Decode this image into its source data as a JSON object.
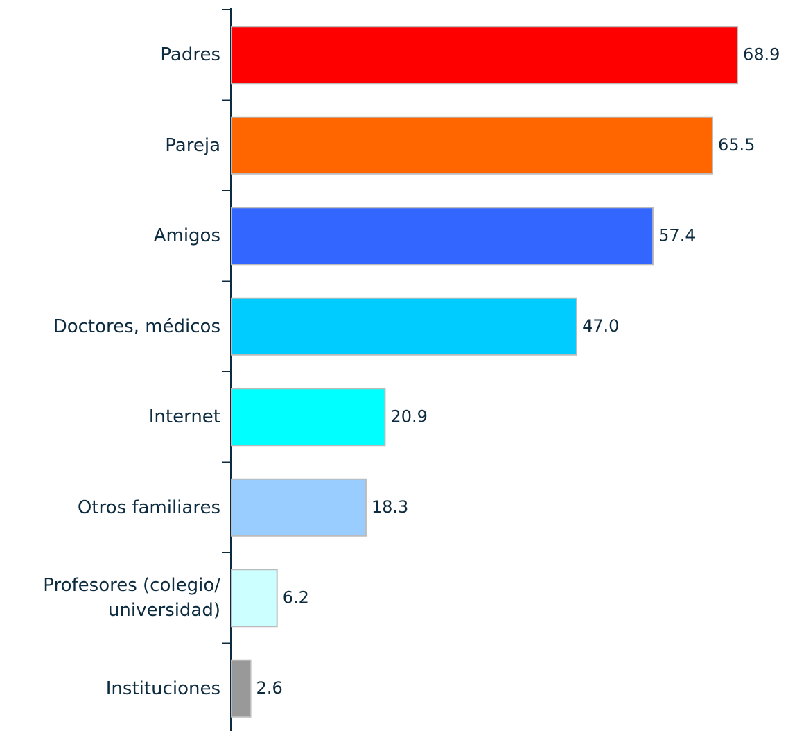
{
  "chart_data": {
    "type": "bar",
    "orientation": "horizontal",
    "categories": [
      "Padres",
      "Pareja",
      "Amigos",
      "Doctores, médicos",
      "Internet",
      "Otros familiares",
      "Profesores (colegio/ universidad)",
      "Instituciones"
    ],
    "values": [
      68.9,
      65.5,
      57.4,
      47.0,
      20.9,
      18.3,
      6.2,
      2.6
    ],
    "value_labels": [
      "68.9",
      "65.5",
      "57.4",
      "47.0",
      "20.9",
      "18.3",
      "6.2",
      "2.6"
    ],
    "colors": [
      "#ff0000",
      "#ff6600",
      "#3366ff",
      "#00ccff",
      "#00ffff",
      "#99ccff",
      "#ccffff",
      "#999999"
    ]
  }
}
